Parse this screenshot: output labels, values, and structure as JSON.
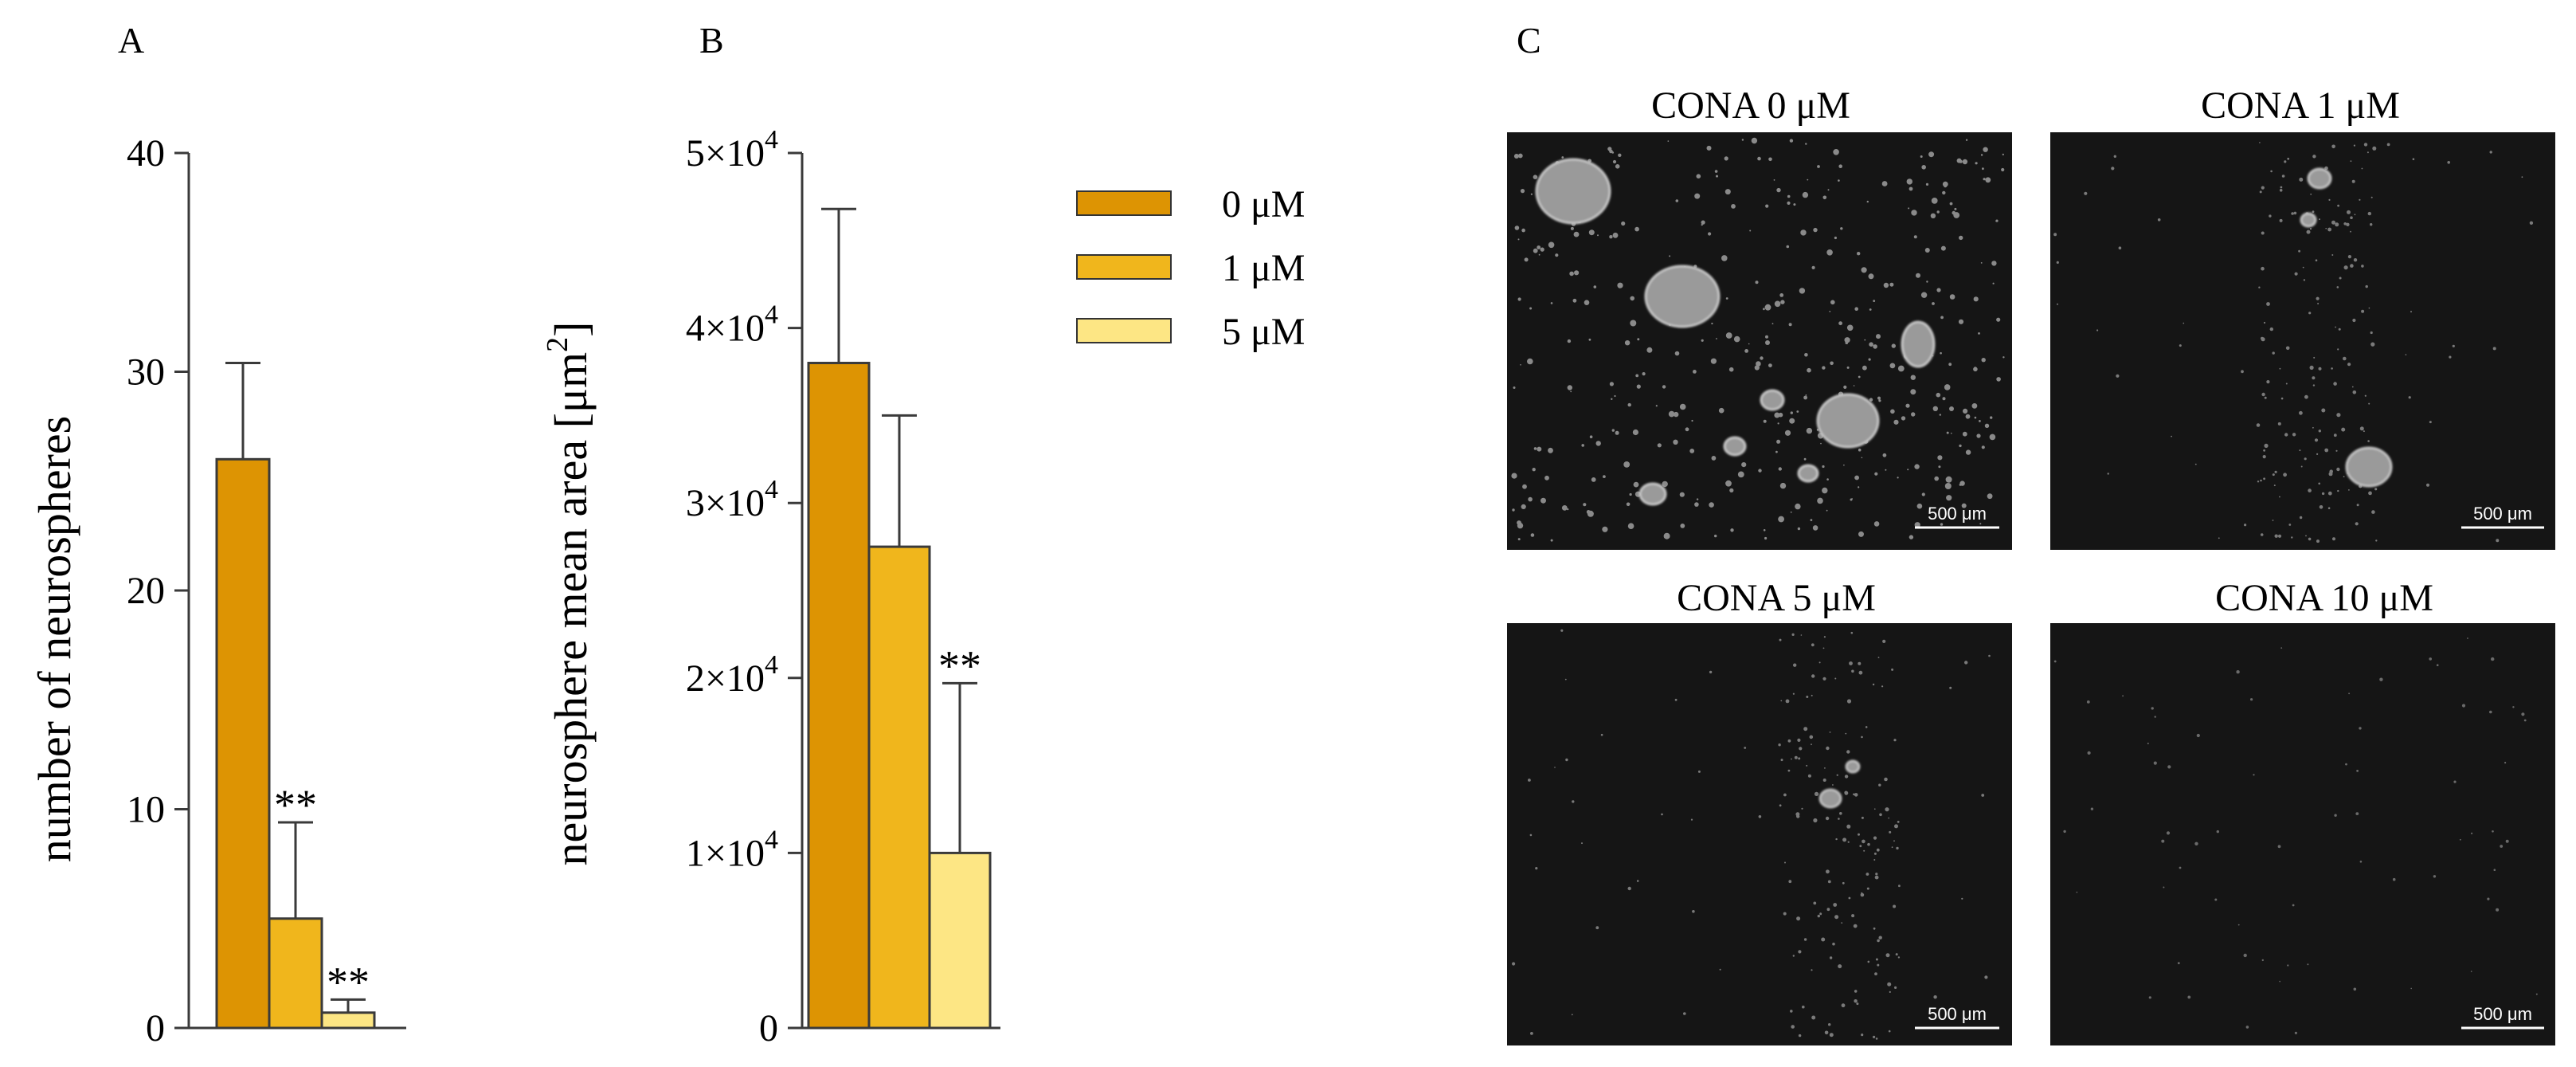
{
  "panels": {
    "A": "A",
    "B": "B",
    "C": "C"
  },
  "legend": [
    {
      "label": "0 μM",
      "color": "#dd9403"
    },
    {
      "label": "1 μM",
      "color": "#f0b61c"
    },
    {
      "label": "5 μM",
      "color": "#fde684"
    }
  ],
  "chart_data": [
    {
      "type": "bar",
      "panel": "A",
      "ylabel": "number of neurospheres",
      "ylim": [
        0,
        40
      ],
      "yticks": [
        0,
        10,
        20,
        30,
        40
      ],
      "ytick_labels": [
        "0",
        "10",
        "20",
        "30",
        "40"
      ],
      "categories": [
        "0 μM",
        "1 μM",
        "5 μM"
      ],
      "values": [
        26,
        5,
        0.7
      ],
      "errors": [
        4.4,
        4.4,
        0.6
      ],
      "annotations": [
        "",
        "**",
        "**"
      ],
      "colors": [
        "#dd9403",
        "#f0b61c",
        "#fde684"
      ]
    },
    {
      "type": "bar",
      "panel": "B",
      "ylabel": "neurosphere mean area [μm",
      "ylabel_sup": "2",
      "ylabel_end": "]",
      "ylim": [
        0,
        50000
      ],
      "yticks": [
        0,
        10000,
        20000,
        30000,
        40000,
        50000
      ],
      "ytick_labels": [
        {
          "base": "0",
          "exp": ""
        },
        {
          "base": "1×10",
          "exp": "4"
        },
        {
          "base": "2×10",
          "exp": "4"
        },
        {
          "base": "3×10",
          "exp": "4"
        },
        {
          "base": "4×10",
          "exp": "4"
        },
        {
          "base": "5×10",
          "exp": "4"
        }
      ],
      "categories": [
        "0 μM",
        "1 μM",
        "5 μM"
      ],
      "values": [
        38000,
        27500,
        10000
      ],
      "errors": [
        8800,
        7500,
        9700
      ],
      "annotations": [
        "",
        "",
        "**"
      ],
      "colors": [
        "#dd9403",
        "#f0b61c",
        "#fde684"
      ]
    }
  ],
  "micrographs": [
    {
      "title": "CONA 0 μM",
      "scale_bar": "500 μm"
    },
    {
      "title": "CONA 1 μM",
      "scale_bar": "500 μm"
    },
    {
      "title": "CONA 5 μM",
      "scale_bar": "500 μm"
    },
    {
      "title": "CONA 10 μM",
      "scale_bar": "500 μm"
    }
  ]
}
